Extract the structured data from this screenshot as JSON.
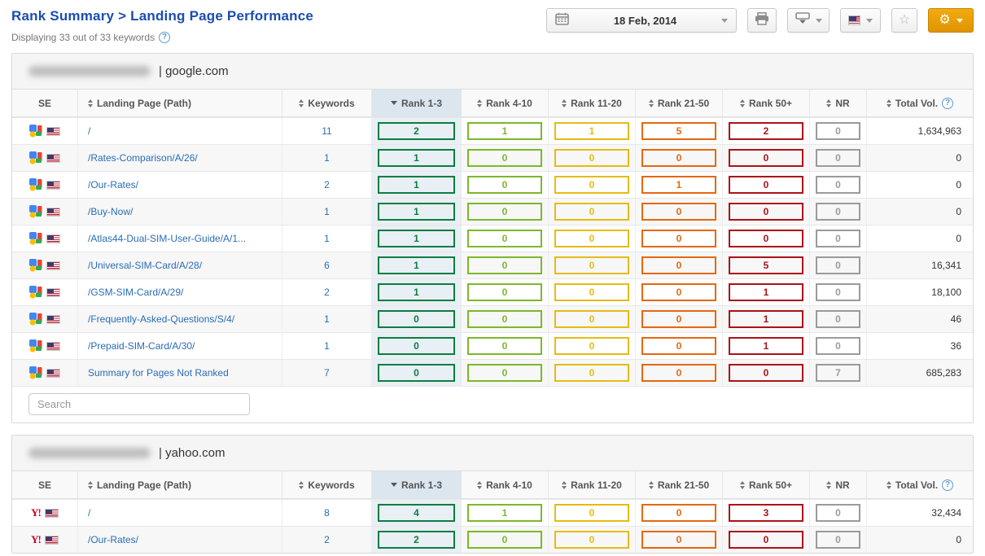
{
  "page": {
    "title": "Rank Summary > Landing Page Performance",
    "subtitle": "Displaying 33 out of 33 keywords"
  },
  "toolbar": {
    "date_label": "18 Feb, 2014",
    "buttons": [
      "date-picker",
      "print",
      "export",
      "language-flag",
      "favorite",
      "settings"
    ]
  },
  "accent_colors": {
    "title_blue": "#1b4db0",
    "link_blue": "#2a6db5",
    "gear_orange": "#e89c00",
    "sorted_header_bg": "#dce6ee",
    "sorted_cell_bg": "#e8eff5"
  },
  "columns": [
    {
      "label": "SE",
      "type": "se",
      "cls": "c-se",
      "sortable": false
    },
    {
      "label": "Landing Page (Path)",
      "type": "path",
      "cls": "c-path",
      "sortable": true
    },
    {
      "label": "Keywords",
      "type": "kw",
      "cls": "c-kw",
      "sortable": true
    },
    {
      "label": "Rank 1-3",
      "type": "rank",
      "key": "rank13",
      "cls": "c-r13",
      "sortable": true,
      "sorted": true
    },
    {
      "label": "Rank 4-10",
      "type": "rank",
      "key": "rank410",
      "cls": "c-r",
      "sortable": true
    },
    {
      "label": "Rank 11-20",
      "type": "rank",
      "key": "rank1120",
      "cls": "c-r",
      "sortable": true
    },
    {
      "label": "Rank 21-50",
      "type": "rank",
      "key": "rank2150",
      "cls": "c-r",
      "sortable": true
    },
    {
      "label": "Rank 50+",
      "type": "rank",
      "key": "rank50",
      "cls": "c-r",
      "sortable": true
    },
    {
      "label": "NR",
      "type": "rank",
      "key": "nr",
      "cls": "c-nr",
      "sortable": true
    },
    {
      "label": "Total Vol.",
      "type": "total",
      "key": "total",
      "cls": "c-total",
      "sortable": true,
      "help": true
    }
  ],
  "rank_colors": {
    "rank13": "#0d7d3f",
    "rank410": "#7cb82a",
    "rank1120": "#e5bb15",
    "rank2150": "#e56711",
    "rank50": "#ac1216",
    "nr": "#9b9b9b"
  },
  "tables": [
    {
      "engine": "google",
      "engine_icon": "google-icon",
      "domain_suffix": "| google.com",
      "search_placeholder": "Search",
      "rows": [
        {
          "path": "/",
          "keywords": "11",
          "rank13": "2",
          "rank410": "1",
          "rank1120": "1",
          "rank2150": "5",
          "rank50": "2",
          "nr": "0",
          "total": "1,634,963"
        },
        {
          "path": "/Rates-Comparison/A/26/",
          "keywords": "1",
          "rank13": "1",
          "rank410": "0",
          "rank1120": "0",
          "rank2150": "0",
          "rank50": "0",
          "nr": "0",
          "total": "0"
        },
        {
          "path": "/Our-Rates/",
          "keywords": "2",
          "rank13": "1",
          "rank410": "0",
          "rank1120": "0",
          "rank2150": "1",
          "rank50": "0",
          "nr": "0",
          "total": "0"
        },
        {
          "path": "/Buy-Now/",
          "keywords": "1",
          "rank13": "1",
          "rank410": "0",
          "rank1120": "0",
          "rank2150": "0",
          "rank50": "0",
          "nr": "0",
          "total": "0"
        },
        {
          "path": "/Atlas44-Dual-SIM-User-Guide/A/1...",
          "keywords": "1",
          "rank13": "1",
          "rank410": "0",
          "rank1120": "0",
          "rank2150": "0",
          "rank50": "0",
          "nr": "0",
          "total": "0"
        },
        {
          "path": "/Universal-SIM-Card/A/28/",
          "keywords": "6",
          "rank13": "1",
          "rank410": "0",
          "rank1120": "0",
          "rank2150": "0",
          "rank50": "5",
          "nr": "0",
          "total": "16,341"
        },
        {
          "path": "/GSM-SIM-Card/A/29/",
          "keywords": "2",
          "rank13": "1",
          "rank410": "0",
          "rank1120": "0",
          "rank2150": "0",
          "rank50": "1",
          "nr": "0",
          "total": "18,100"
        },
        {
          "path": "/Frequently-Asked-Questions/S/4/",
          "keywords": "1",
          "rank13": "0",
          "rank410": "0",
          "rank1120": "0",
          "rank2150": "0",
          "rank50": "1",
          "nr": "0",
          "total": "46"
        },
        {
          "path": "/Prepaid-SIM-Card/A/30/",
          "keywords": "1",
          "rank13": "0",
          "rank410": "0",
          "rank1120": "0",
          "rank2150": "0",
          "rank50": "1",
          "nr": "0",
          "total": "36"
        },
        {
          "path": "Summary for Pages Not Ranked",
          "keywords": "7",
          "rank13": "0",
          "rank410": "0",
          "rank1120": "0",
          "rank2150": "0",
          "rank50": "0",
          "nr": "7",
          "total": "685,283"
        }
      ]
    },
    {
      "engine": "yahoo",
      "engine_icon": "yahoo-icon",
      "domain_suffix": "| yahoo.com",
      "rows": [
        {
          "path": "/",
          "keywords": "8",
          "rank13": "4",
          "rank410": "1",
          "rank1120": "0",
          "rank2150": "0",
          "rank50": "3",
          "nr": "0",
          "total": "32,434"
        },
        {
          "path": "/Our-Rates/",
          "keywords": "2",
          "rank13": "2",
          "rank410": "0",
          "rank1120": "0",
          "rank2150": "0",
          "rank50": "0",
          "nr": "0",
          "total": "0"
        }
      ]
    }
  ]
}
